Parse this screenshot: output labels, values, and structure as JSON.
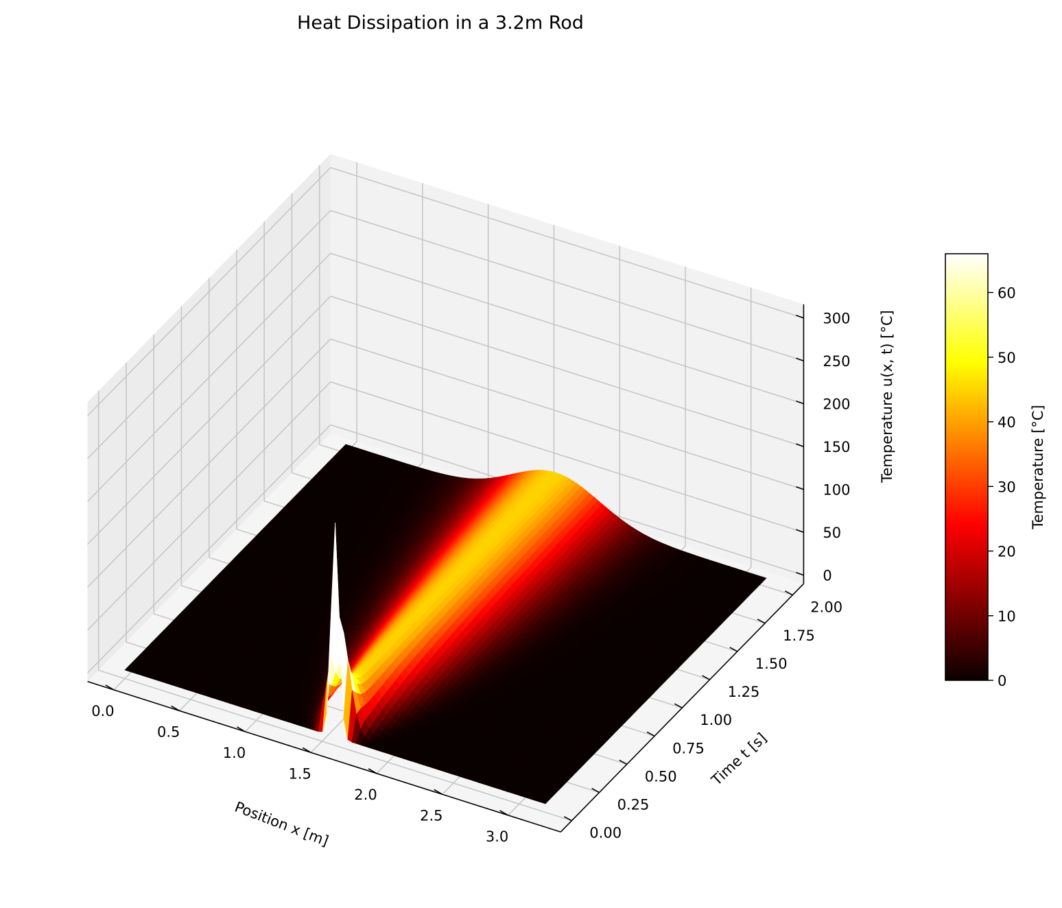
{
  "chart_data": {
    "type": "surface3d",
    "title": "Heat Dissipation in a 3.2m Rod",
    "xlabel": "Position x [m]",
    "ylabel": "Time t [s]",
    "zlabel": "Temperature u(x, t) [°C]",
    "x_ticks": [
      "0.0",
      "0.5",
      "1.0",
      "1.5",
      "2.0",
      "2.5",
      "3.0"
    ],
    "y_ticks": [
      "0.00",
      "0.25",
      "0.50",
      "0.75",
      "1.00",
      "1.25",
      "1.50",
      "1.75",
      "2.00"
    ],
    "z_ticks": [
      "0",
      "50",
      "100",
      "150",
      "200",
      "250",
      "300"
    ],
    "xlim": [
      0,
      3.2
    ],
    "ylim": [
      0,
      2.0
    ],
    "zlim": [
      0,
      300
    ],
    "grid": true,
    "colormap": "hot",
    "peak": {
      "center_x": 1.6,
      "initial_temperature": 250,
      "initial_width": 0.03,
      "temperature_at_t_end": 45,
      "t_end": 2.0
    },
    "colorbar": {
      "label": "Temperature [°C]",
      "ticks": [
        "0",
        "10",
        "20",
        "30",
        "40",
        "50",
        "60"
      ],
      "range": [
        0,
        66
      ]
    }
  },
  "colors": {
    "pane_back": "#f2f2f2",
    "pane_side": "#ececec",
    "pane_floor": "#f5f5f5",
    "grid": "#c4c4c4"
  }
}
